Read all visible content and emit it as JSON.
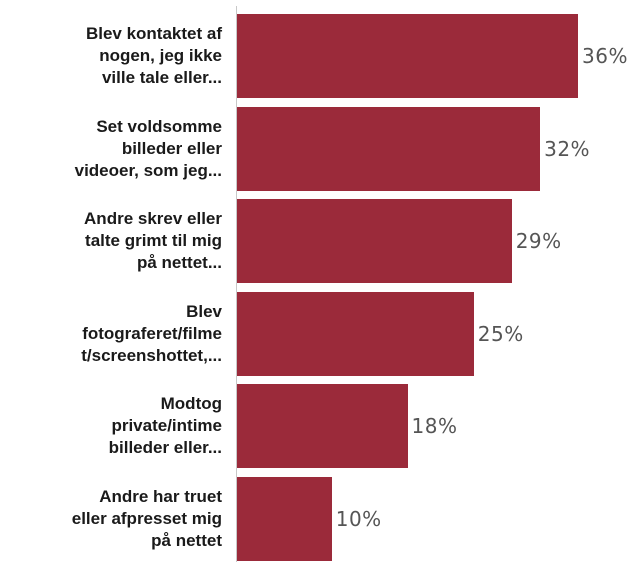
{
  "chart_data": {
    "type": "bar",
    "orientation": "horizontal",
    "title": "",
    "xlabel": "",
    "ylabel": "",
    "categories": [
      [
        "Blev kontaktet af",
        "nogen, jeg ikke",
        "ville tale eller..."
      ],
      [
        "Set voldsomme",
        "billeder eller",
        "videoer, som jeg..."
      ],
      [
        "Andre skrev eller",
        "talte grimt til mig",
        "på nettet..."
      ],
      [
        "Blev",
        "fotograferet/filme",
        "t/screenshottet,..."
      ],
      [
        "Modtog",
        "private/intime",
        "billeder eller..."
      ],
      [
        "Andre har truet",
        "eller afpresset mig",
        "på nettet"
      ]
    ],
    "values": [
      36,
      32,
      29,
      25,
      18,
      10
    ],
    "value_labels": [
      "36%",
      "32%",
      "29%",
      "25%",
      "18%",
      "10%"
    ],
    "unit": "%",
    "xlim": [
      0,
      40
    ],
    "grid": false,
    "legend": "none",
    "bar_color": "#9b2a3a"
  }
}
